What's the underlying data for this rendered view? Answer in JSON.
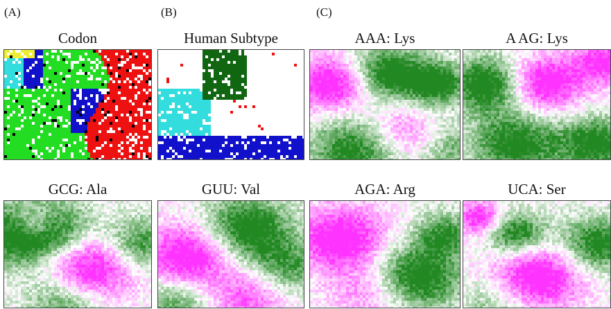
{
  "labels": {
    "a": "(A)",
    "b": "(B)",
    "c": "(C)"
  },
  "panels": [
    {
      "id": "codon",
      "title": "Codon",
      "kind": "cluster"
    },
    {
      "id": "human",
      "title": "Human Subtype",
      "kind": "subtype"
    },
    {
      "id": "aaa",
      "title": "AAA: Lys",
      "kind": "heat"
    },
    {
      "id": "aag",
      "title": "A AG: Lys",
      "kind": "heat"
    },
    {
      "id": "gcg",
      "title": "GCG: Ala",
      "kind": "heat"
    },
    {
      "id": "guu",
      "title": "GUU: Val",
      "kind": "heat"
    },
    {
      "id": "aga",
      "title": "AGA: Arg",
      "kind": "heat"
    },
    {
      "id": "uca",
      "title": "UCA: Ser",
      "kind": "heat"
    }
  ],
  "colors": {
    "red": "#ee1111",
    "green": "#22dd22",
    "blue": "#1111cc",
    "cyan": "#33dddd",
    "yellow": "#eeee33",
    "darkgreen": "#116611",
    "magenta": "#ff33ff",
    "heat_green": "#228822",
    "white": "#ffffff"
  }
}
